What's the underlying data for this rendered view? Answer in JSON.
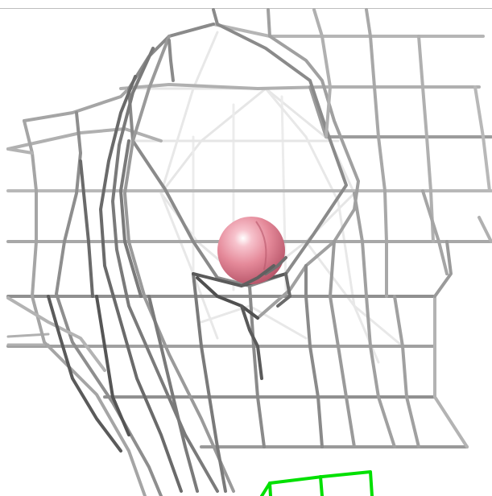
{
  "viewer": {
    "background": "#ffffff",
    "mesh_color_light": "#d8d8d8",
    "mesh_color_mid": "#9a9a9a",
    "mesh_color_dark": "#5a5a5a",
    "sphere_color": "#e58a9a",
    "sphere_highlight": "#fbe1e6",
    "selection_mesh_color": "#00e000"
  }
}
